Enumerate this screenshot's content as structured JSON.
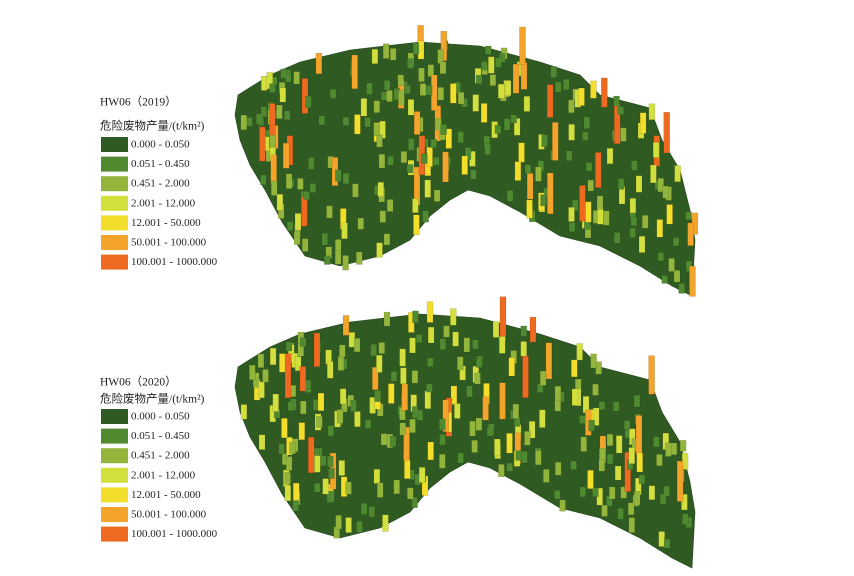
{
  "panels": [
    {
      "title": "HW06（2019）",
      "unit": "危险废物产量/(t/km²)",
      "legend": [
        {
          "label": "0.000 - 0.050",
          "color": "#2f5a22"
        },
        {
          "label": "0.051 - 0.450",
          "color": "#4f8a31"
        },
        {
          "label": "0.451 - 2.000",
          "color": "#93b53c"
        },
        {
          "label": "2.001 - 12.000",
          "color": "#d3df3c"
        },
        {
          "label": "12.001 - 50.000",
          "color": "#f3de2c"
        },
        {
          "label": "50.001 - 100.000",
          "color": "#f4a42b"
        },
        {
          "label": "100.001 - 1000.000",
          "color": "#ee6a20"
        }
      ]
    },
    {
      "title": "HW06（2020）",
      "unit": "危险废物产量/(t/km²)",
      "legend": [
        {
          "label": "0.000 - 0.050",
          "color": "#2f5a22"
        },
        {
          "label": "0.051 - 0.450",
          "color": "#4f8a31"
        },
        {
          "label": "0.451 - 2.000",
          "color": "#93b53c"
        },
        {
          "label": "2.001 - 12.000",
          "color": "#d3df3c"
        },
        {
          "label": "12.001 - 50.000",
          "color": "#f3de2c"
        },
        {
          "label": "50.001 - 100.000",
          "color": "#f4a42b"
        },
        {
          "label": "100.001 - 1000.000",
          "color": "#ee6a20"
        }
      ]
    }
  ]
}
